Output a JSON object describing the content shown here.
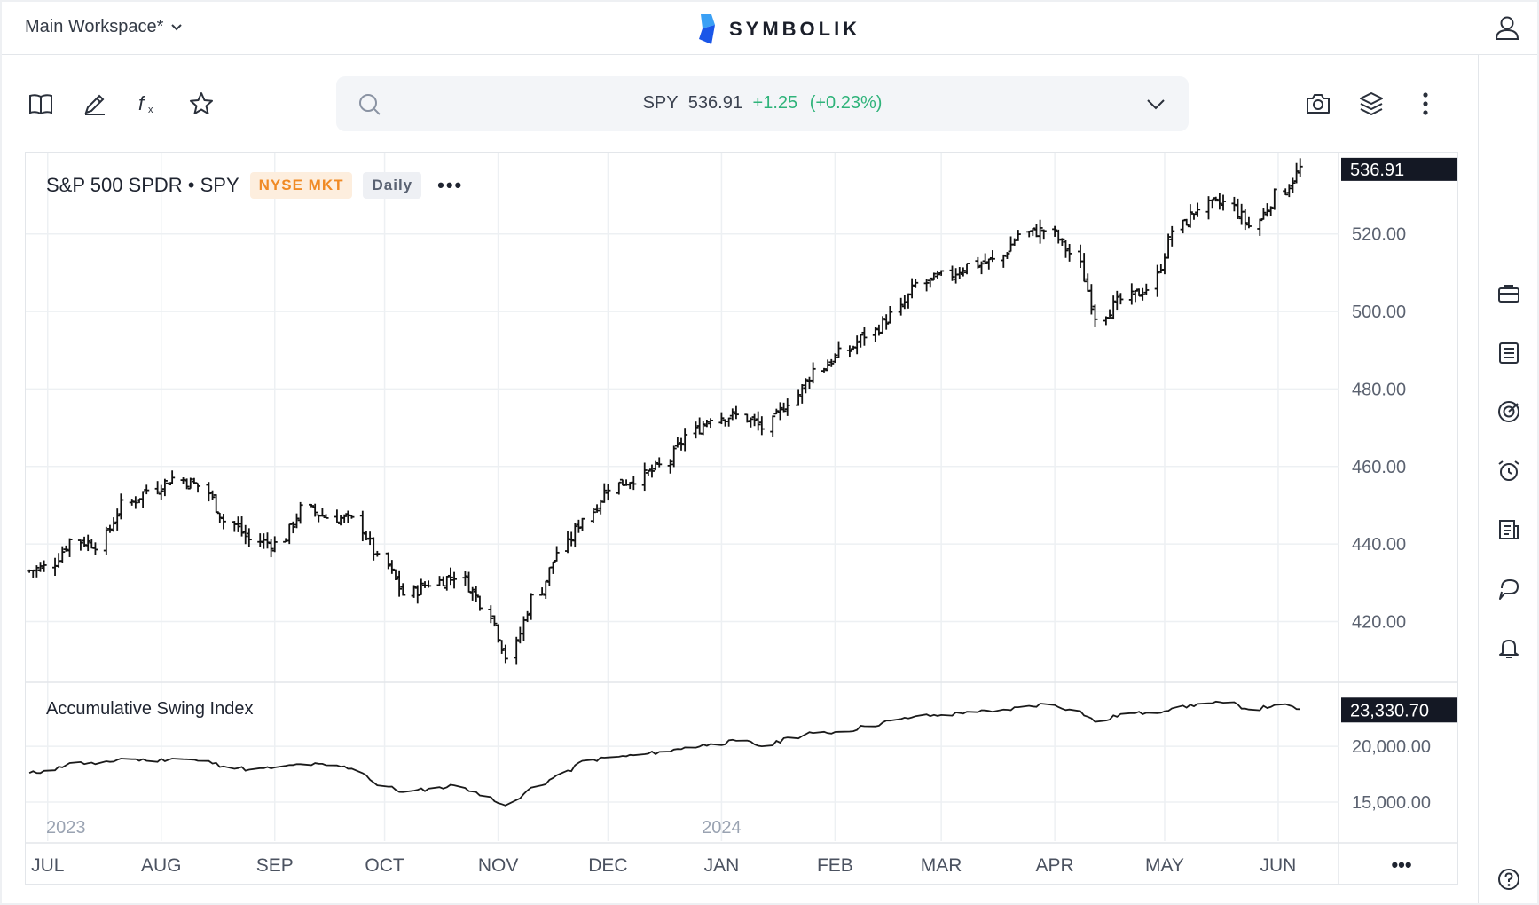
{
  "app": {
    "workspace_label": "Main Workspace*",
    "brand": "SYMBOLIK"
  },
  "search": {
    "symbol": "SPY",
    "price": "536.91",
    "change": "+1.25",
    "change_pct": "(+0.23%)",
    "change_color": "#2fb37a"
  },
  "chart_header": {
    "title": "S&P 500 SPDR • SPY",
    "exchange": "NYSE MKT",
    "interval": "Daily",
    "more": "•••"
  },
  "indicator": {
    "title": "Accumulative Swing Index"
  },
  "footer": {
    "more": "•••"
  },
  "icons": {
    "toolbar": [
      "book-icon",
      "pencil-icon",
      "function-icon",
      "star-icon",
      "camera-icon",
      "layers-icon",
      "vertical-dots-icon"
    ],
    "sidebar": [
      "briefcase-icon",
      "list-icon",
      "radar-icon",
      "alarm-clock-icon",
      "news-icon",
      "chat-icon",
      "bell-icon",
      "help-icon"
    ]
  },
  "chart_data": [
    {
      "type": "ohlc",
      "title": "S&P 500 SPDR • SPY",
      "interval": "Daily",
      "ylim": [
        405,
        541
      ],
      "y_ticks": [
        "520.00",
        "500.00",
        "480.00",
        "460.00",
        "440.00",
        "420.00"
      ],
      "last_value_label": "536.91",
      "x_month_labels": [
        "JUL",
        "AUG",
        "SEP",
        "OCT",
        "NOV",
        "DEC",
        "JAN",
        "FEB",
        "MAR",
        "APR",
        "MAY",
        "JUN"
      ],
      "year_labels": [
        "2023",
        "2024"
      ],
      "start_date": "2023-06-30",
      "weekly_closes": [
        434,
        441,
        440,
        450,
        454,
        457,
        455,
        446,
        441,
        440,
        449,
        447,
        446,
        436,
        427,
        430,
        432,
        425,
        411,
        426,
        438,
        447,
        455,
        457,
        460,
        468,
        473,
        473,
        470,
        477,
        485,
        489,
        494,
        499,
        507,
        509,
        512,
        513,
        520,
        521,
        515,
        499,
        503,
        506,
        521,
        527,
        528,
        522,
        530,
        536.91
      ]
    },
    {
      "type": "line",
      "title": "Accumulative Swing Index",
      "ylim": [
        11500,
        25500
      ],
      "y_ticks": [
        "20,000.00",
        "15,000.00"
      ],
      "last_value_label": "23,330.70",
      "weekly_values": [
        17800,
        18500,
        18400,
        18900,
        18700,
        18900,
        18700,
        18200,
        17900,
        18100,
        18400,
        18300,
        18000,
        16500,
        15900,
        16200,
        16500,
        15600,
        14700,
        16300,
        17400,
        18700,
        19000,
        19200,
        19500,
        19900,
        20200,
        20500,
        20000,
        20800,
        21200,
        21300,
        21800,
        22300,
        22700,
        22800,
        23100,
        23100,
        23500,
        23800,
        23300,
        22200,
        22900,
        23000,
        23400,
        23800,
        23900,
        23300,
        23700,
        23330.7
      ]
    }
  ]
}
